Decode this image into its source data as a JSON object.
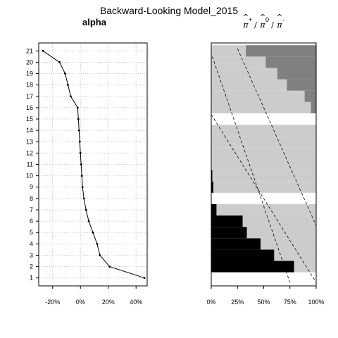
{
  "figure_title": "Backward-Looking Model_2015",
  "chart_data": [
    {
      "type": "line",
      "title": "alpha",
      "x_ticks": [
        "-20%",
        "0%",
        "20%",
        "40%"
      ],
      "x_tick_values": [
        -0.2,
        0.0,
        0.2,
        0.4
      ],
      "xlim": [
        -0.3,
        0.48
      ],
      "y_ticks": [
        "1",
        "2",
        "3",
        "4",
        "5",
        "6",
        "7",
        "8",
        "9",
        "10",
        "11",
        "12",
        "13",
        "14",
        "15",
        "16",
        "17",
        "18",
        "19",
        "20",
        "21"
      ],
      "ylim": [
        0.3,
        21.7
      ],
      "grid": true,
      "points": [
        {
          "y": 1,
          "x": 0.46
        },
        {
          "y": 2,
          "x": 0.21
        },
        {
          "y": 3,
          "x": 0.14
        },
        {
          "y": 4,
          "x": 0.12
        },
        {
          "y": 5,
          "x": 0.09
        },
        {
          "y": 6,
          "x": 0.06
        },
        {
          "y": 7,
          "x": 0.04
        },
        {
          "y": 8,
          "x": 0.025
        },
        {
          "y": 9,
          "x": 0.015
        },
        {
          "y": 10,
          "x": 0.01
        },
        {
          "y": 11,
          "x": 0.005
        },
        {
          "y": 12,
          "x": 0.0
        },
        {
          "y": 13,
          "x": -0.005
        },
        {
          "y": 14,
          "x": -0.01
        },
        {
          "y": 15,
          "x": -0.015
        },
        {
          "y": 16,
          "x": -0.02
        },
        {
          "y": 17,
          "x": -0.07
        },
        {
          "y": 18,
          "x": -0.09
        },
        {
          "y": 19,
          "x": -0.11
        },
        {
          "y": 20,
          "x": -0.15
        },
        {
          "y": 21,
          "x": -0.27
        }
      ]
    },
    {
      "type": "area",
      "title_parts": [
        "π",
        "/",
        "π",
        "/",
        "π"
      ],
      "title_superscripts": [
        "+",
        "0",
        "-"
      ],
      "x_ticks": [
        "0%",
        "25%",
        "50%",
        "75%",
        "100%"
      ],
      "x_tick_values": [
        0,
        0.25,
        0.5,
        0.75,
        1.0
      ],
      "xlim": [
        0,
        1
      ],
      "ylim": [
        0.3,
        21.7
      ],
      "colors": {
        "plus": "#000000",
        "zero": "#cccccc",
        "minus": "#808080",
        "missing": "#ffffff"
      },
      "rows": [
        {
          "y": 1,
          "plus": null,
          "zero": null
        },
        {
          "y": 2,
          "plus": 0.79,
          "zero": 0.21
        },
        {
          "y": 3,
          "plus": 0.6,
          "zero": 0.4
        },
        {
          "y": 4,
          "plus": 0.47,
          "zero": 0.53
        },
        {
          "y": 5,
          "plus": 0.34,
          "zero": 0.66
        },
        {
          "y": 6,
          "plus": 0.3,
          "zero": 0.7
        },
        {
          "y": 7,
          "plus": 0.05,
          "zero": 0.95
        },
        {
          "y": 8,
          "plus": null,
          "zero": null
        },
        {
          "y": 9,
          "plus": 0.02,
          "zero": 0.98
        },
        {
          "y": 10,
          "plus": 0.01,
          "zero": 0.99
        },
        {
          "y": 11,
          "plus": 0.0,
          "zero": 1.0
        },
        {
          "y": 12,
          "plus": 0.0,
          "zero": 1.0
        },
        {
          "y": 13,
          "plus": 0.0,
          "zero": 1.0
        },
        {
          "y": 14,
          "plus": 0.0,
          "zero": 1.0
        },
        {
          "y": 15,
          "plus": null,
          "zero": null
        },
        {
          "y": 16,
          "plus": 0.0,
          "zero": 0.95
        },
        {
          "y": 17,
          "plus": 0.0,
          "zero": 0.89
        },
        {
          "y": 18,
          "plus": 0.0,
          "zero": 0.72
        },
        {
          "y": 19,
          "plus": 0.0,
          "zero": 0.63
        },
        {
          "y": 20,
          "plus": 0.0,
          "zero": 0.52
        },
        {
          "y": 21,
          "plus": 0.0,
          "zero": 0.33
        }
      ],
      "dashed_lines": [
        {
          "from": {
            "x": 0.0,
            "y": 15.4
          },
          "to": {
            "x": 1.0,
            "y": 0.6
          }
        },
        {
          "from": {
            "x": 0.01,
            "y": 20.5
          },
          "to": {
            "x": 0.75,
            "y": 0.6
          }
        },
        {
          "from": {
            "x": 0.25,
            "y": 21.2
          },
          "to": {
            "x": 1.0,
            "y": 5.6
          }
        }
      ]
    }
  ]
}
